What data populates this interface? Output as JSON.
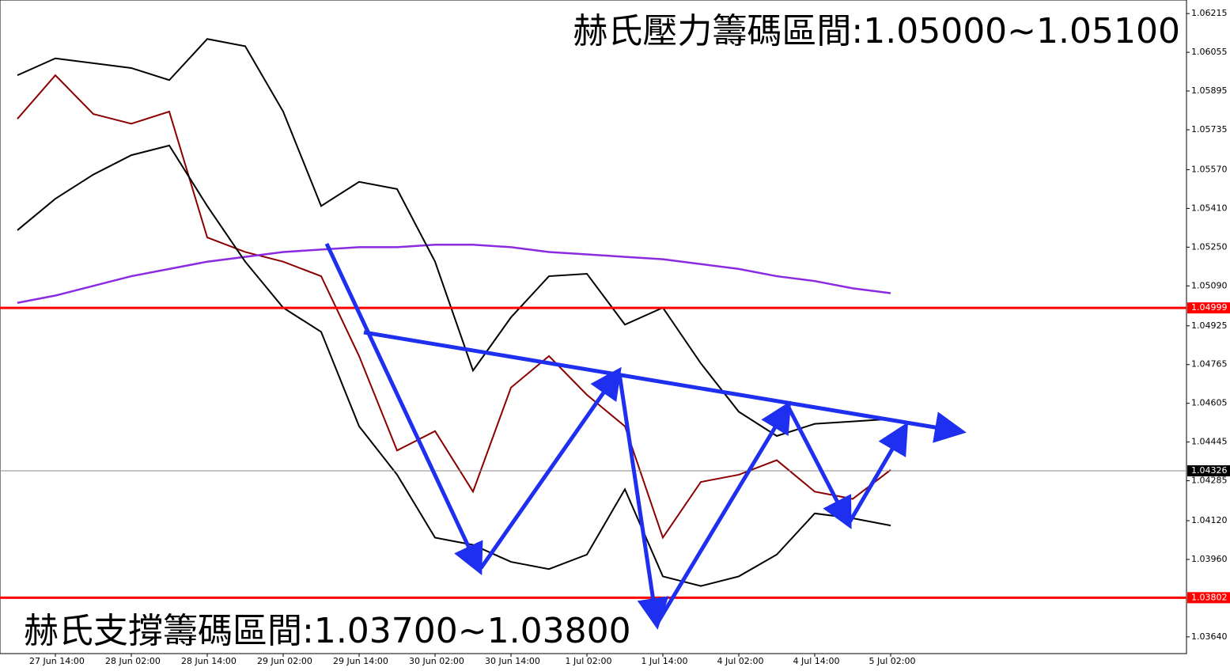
{
  "chart_data": {
    "type": "line",
    "annotations": [
      "赫氏壓力籌碼區間:1.05000~1.05100",
      "赫氏支撐籌碼區間:1.03700~1.03800"
    ],
    "categories": [
      null,
      "27 Jun 14:00",
      null,
      "28 Jun 02:00",
      null,
      "28 Jun 14:00",
      null,
      "29 Jun 02:00",
      null,
      "29 Jun 14:00",
      null,
      "30 Jun 02:00",
      null,
      "30 Jun 14:00",
      null,
      "1 Jul 02:00",
      null,
      "1 Jul 14:00",
      null,
      "4 Jul 02:00",
      null,
      "4 Jul 14:00",
      null,
      "5 Jul 02:00"
    ],
    "series": [
      {
        "color": "#8b0000",
        "values": [
          1.0578,
          1.0596,
          1.058,
          1.0576,
          1.0581,
          1.0529,
          1.0523,
          1.0519,
          1.0513,
          1.048,
          1.0441,
          1.0449,
          1.0424,
          1.0467,
          1.048,
          1.0464,
          1.0451,
          1.0405,
          1.0428,
          1.0431,
          1.0437,
          1.0424,
          1.0421,
          1.0433
        ]
      },
      {
        "color": "#8a2be2",
        "values": [
          1.0502,
          1.0505,
          1.0509,
          1.0513,
          1.0516,
          1.0519,
          1.0521,
          1.0523,
          1.0524,
          1.0525,
          1.0525,
          1.0526,
          1.0526,
          1.0525,
          1.0523,
          1.0522,
          1.0521,
          1.052,
          1.0518,
          1.0516,
          1.0513,
          1.0511,
          1.0508,
          1.0506
        ]
      },
      {
        "color": "#000000",
        "values": [
          1.0596,
          1.0603,
          1.0601,
          1.0599,
          1.0594,
          1.0611,
          1.0608,
          1.0581,
          1.0542,
          1.0552,
          1.0549,
          1.0519,
          1.0474,
          1.0496,
          1.0513,
          1.0514,
          1.0493,
          1.05,
          1.0477,
          1.0457,
          1.0447,
          1.0452,
          1.0453,
          1.0454
        ]
      },
      {
        "color": "#000000",
        "values": [
          1.0532,
          1.0545,
          1.0555,
          1.0563,
          1.0567,
          1.0542,
          1.0519,
          1.05,
          1.049,
          1.0451,
          1.0431,
          1.0405,
          1.0402,
          1.0395,
          1.0392,
          1.0398,
          1.0425,
          1.0389,
          1.0385,
          1.0389,
          1.0398,
          1.0415,
          1.0413,
          1.041
        ]
      }
    ],
    "levels": [
      {
        "value": 1.04999,
        "color": "#ff0000"
      },
      {
        "value": 1.03802,
        "color": "#ff0000"
      },
      {
        "value": 1.04326,
        "color": "#000000"
      }
    ],
    "ylim": [
      1.03571,
      1.06271
    ],
    "yticks": [
      {
        "value": 1.06215,
        "label": "1.06215"
      },
      {
        "value": 1.06055,
        "label": "1.06055"
      },
      {
        "value": 1.05895,
        "label": "1.05895"
      },
      {
        "value": 1.05735,
        "label": "1.05735"
      },
      {
        "value": 1.0557,
        "label": "1.05570"
      },
      {
        "value": 1.0541,
        "label": "1.05410"
      },
      {
        "value": 1.0525,
        "label": "1.05250"
      },
      {
        "value": 1.0509,
        "label": "1.05090"
      },
      {
        "value": 1.04925,
        "label": "1.04925"
      },
      {
        "value": 1.04765,
        "label": "1.04765"
      },
      {
        "value": 1.04605,
        "label": "1.04605"
      },
      {
        "value": 1.04445,
        "label": "1.04445"
      },
      {
        "value": 1.04285,
        "label": "1.04285"
      },
      {
        "value": 1.0412,
        "label": "1.04120"
      },
      {
        "value": 1.0396,
        "label": "1.03960"
      },
      {
        "value": 1.0364,
        "label": "1.03640"
      }
    ]
  }
}
